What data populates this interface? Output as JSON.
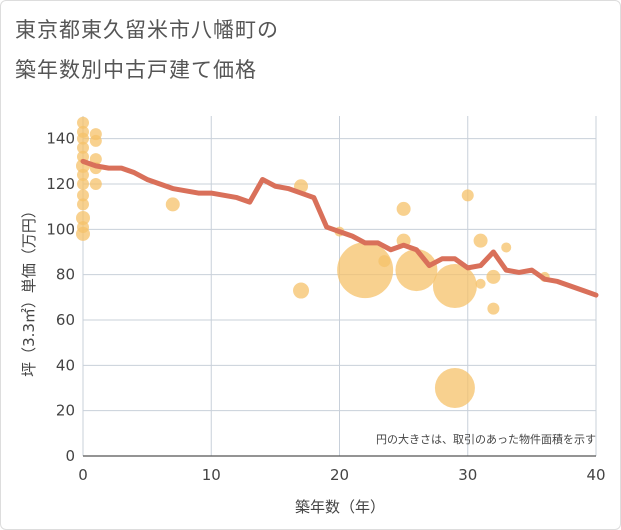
{
  "title_line1": "東京都東久留米市八幡町の",
  "title_line2": "築年数別中古戸建て価格",
  "colors": {
    "bubble": "#f5c169",
    "line": "#d9705a",
    "grid": "#c8d0da",
    "text": "#444444"
  },
  "chart_data": {
    "type": "scatter",
    "xlabel": "築年数（年）",
    "ylabel": "坪（3.3㎡）単価（万円）",
    "xlim": [
      0,
      40
    ],
    "ylim": [
      0,
      150
    ],
    "xticks": [
      "0",
      "10",
      "20",
      "30",
      "40"
    ],
    "yticks": [
      "0",
      "20",
      "40",
      "60",
      "80",
      "100",
      "120",
      "140"
    ],
    "note": "円の大きさは、取引のあった物件面積を示す",
    "bubbles": [
      {
        "x": 0,
        "y": 147,
        "r": 6
      },
      {
        "x": 0,
        "y": 143,
        "r": 6
      },
      {
        "x": 0,
        "y": 140,
        "r": 6
      },
      {
        "x": 0,
        "y": 136,
        "r": 6
      },
      {
        "x": 0,
        "y": 132,
        "r": 6
      },
      {
        "x": 0,
        "y": 128,
        "r": 7
      },
      {
        "x": 0,
        "y": 124,
        "r": 6
      },
      {
        "x": 0,
        "y": 120,
        "r": 6
      },
      {
        "x": 0,
        "y": 115,
        "r": 6
      },
      {
        "x": 0,
        "y": 111,
        "r": 6
      },
      {
        "x": 0,
        "y": 105,
        "r": 7
      },
      {
        "x": 0,
        "y": 101,
        "r": 6
      },
      {
        "x": 0,
        "y": 98,
        "r": 7
      },
      {
        "x": 1,
        "y": 142,
        "r": 6
      },
      {
        "x": 1,
        "y": 139,
        "r": 6
      },
      {
        "x": 1,
        "y": 131,
        "r": 6
      },
      {
        "x": 1,
        "y": 127,
        "r": 6
      },
      {
        "x": 1,
        "y": 120,
        "r": 6
      },
      {
        "x": 7,
        "y": 111,
        "r": 7
      },
      {
        "x": 17,
        "y": 119,
        "r": 7
      },
      {
        "x": 17,
        "y": 73,
        "r": 8
      },
      {
        "x": 20,
        "y": 99,
        "r": 5
      },
      {
        "x": 22,
        "y": 82,
        "r": 28
      },
      {
        "x": 23.5,
        "y": 86,
        "r": 6
      },
      {
        "x": 25,
        "y": 109,
        "r": 7
      },
      {
        "x": 25,
        "y": 95,
        "r": 7
      },
      {
        "x": 26,
        "y": 82,
        "r": 21
      },
      {
        "x": 29,
        "y": 75,
        "r": 22
      },
      {
        "x": 29,
        "y": 30,
        "r": 20
      },
      {
        "x": 30,
        "y": 115,
        "r": 6
      },
      {
        "x": 31,
        "y": 95,
        "r": 7
      },
      {
        "x": 31,
        "y": 76,
        "r": 5
      },
      {
        "x": 32,
        "y": 79,
        "r": 7
      },
      {
        "x": 32,
        "y": 65,
        "r": 6
      },
      {
        "x": 33,
        "y": 92,
        "r": 5
      },
      {
        "x": 36,
        "y": 79,
        "r": 5
      }
    ],
    "line": {
      "x": [
        0,
        1,
        2,
        3,
        4,
        5,
        6,
        7,
        8,
        9,
        10,
        11,
        12,
        13,
        14,
        15,
        16,
        17,
        18,
        19,
        20,
        21,
        22,
        23,
        24,
        25,
        26,
        27,
        28,
        29,
        30,
        31,
        32,
        33,
        34,
        35,
        36,
        37,
        38,
        39,
        40
      ],
      "y": [
        130,
        128,
        127,
        127,
        125,
        122,
        120,
        118,
        117,
        116,
        116,
        115,
        114,
        112,
        122,
        119,
        118,
        116,
        114,
        101,
        99,
        97,
        94,
        94,
        91,
        93,
        91,
        84,
        87,
        87,
        83,
        84,
        90,
        82,
        81,
        82,
        78,
        77,
        75,
        73,
        71
      ]
    }
  }
}
